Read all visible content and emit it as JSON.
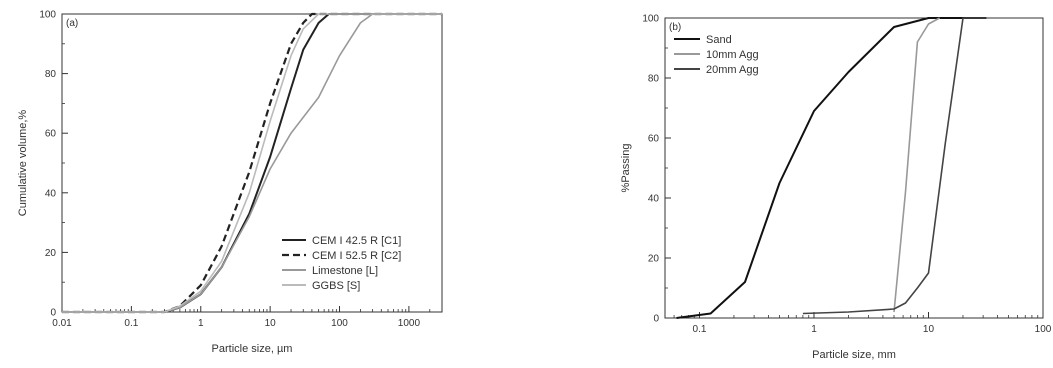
{
  "chart_data": [
    {
      "type": "line",
      "panel_label": "(a)",
      "xlabel": "Particle size, µm",
      "ylabel": "Cumulative volume,%",
      "x_scale": "log",
      "xlim": [
        0.01,
        3000
      ],
      "ylim": [
        0,
        100
      ],
      "x_ticks": [
        "0.01",
        "0.1",
        "1",
        "10",
        "100",
        "1000"
      ],
      "y_ticks": [
        "0",
        "20",
        "40",
        "60",
        "80",
        "100"
      ],
      "legend_position": "bottom-right",
      "series": [
        {
          "name": "CEM I 42.5 R [C1]",
          "color": "#222222",
          "dash": "solid",
          "x": [
            0.01,
            0.3,
            0.5,
            1,
            2,
            5,
            10,
            20,
            30,
            50,
            70,
            3000
          ],
          "y": [
            0,
            0,
            1.5,
            6,
            15,
            33,
            52,
            75,
            88,
            97,
            100,
            100
          ]
        },
        {
          "name": "CEM I 52.5 R [C2]",
          "color": "#222222",
          "dash": "dashed",
          "x": [
            0.01,
            0.3,
            0.5,
            1,
            2,
            5,
            10,
            20,
            30,
            40,
            3000
          ],
          "y": [
            0,
            0,
            2,
            9,
            22,
            47,
            70,
            90,
            97,
            100,
            100
          ]
        },
        {
          "name": "Limestone [L]",
          "color": "#999999",
          "dash": "solid",
          "x": [
            0.01,
            0.3,
            0.5,
            1,
            2,
            5,
            10,
            20,
            50,
            100,
            200,
            300,
            3000
          ],
          "y": [
            0,
            0,
            1.5,
            6,
            15,
            32,
            48,
            60,
            72,
            86,
            97,
            100,
            100
          ]
        },
        {
          "name": "GGBS [S]",
          "color": "#bbbbbb",
          "dash": "solid",
          "x": [
            0.01,
            0.3,
            0.5,
            1,
            2,
            5,
            10,
            20,
            30,
            50,
            3000
          ],
          "y": [
            0,
            0,
            2,
            7,
            17,
            40,
            64,
            86,
            95,
            100,
            100
          ]
        }
      ]
    },
    {
      "type": "line",
      "panel_label": "(b)",
      "xlabel": "Particle size, mm",
      "ylabel": "%Passing",
      "x_scale": "log",
      "xlim": [
        0.05,
        100
      ],
      "ylim": [
        0,
        100
      ],
      "x_ticks": [
        "0.1",
        "1",
        "10",
        "100"
      ],
      "y_ticks": [
        "0",
        "20",
        "40",
        "60",
        "80",
        "100"
      ],
      "legend_position": "top-left",
      "series": [
        {
          "name": "Sand",
          "color": "#111111",
          "dash": "solid",
          "x": [
            0.063,
            0.125,
            0.25,
            0.5,
            1,
            2,
            5,
            10,
            20,
            32
          ],
          "y": [
            0,
            1.5,
            12,
            45,
            69,
            82,
            97,
            100,
            100,
            100
          ]
        },
        {
          "name": "10mm Agg",
          "color": "#999999",
          "dash": "solid",
          "x": [
            5,
            6.3,
            8,
            10,
            12.5
          ],
          "y": [
            2,
            42,
            92,
            98,
            100
          ]
        },
        {
          "name": "20mm Agg",
          "color": "#444444",
          "dash": "solid",
          "x": [
            0.8,
            2,
            5,
            6.3,
            8,
            10,
            14,
            20,
            32
          ],
          "y": [
            1.5,
            2,
            3,
            5,
            10,
            15,
            58,
            100,
            100
          ]
        }
      ]
    }
  ]
}
